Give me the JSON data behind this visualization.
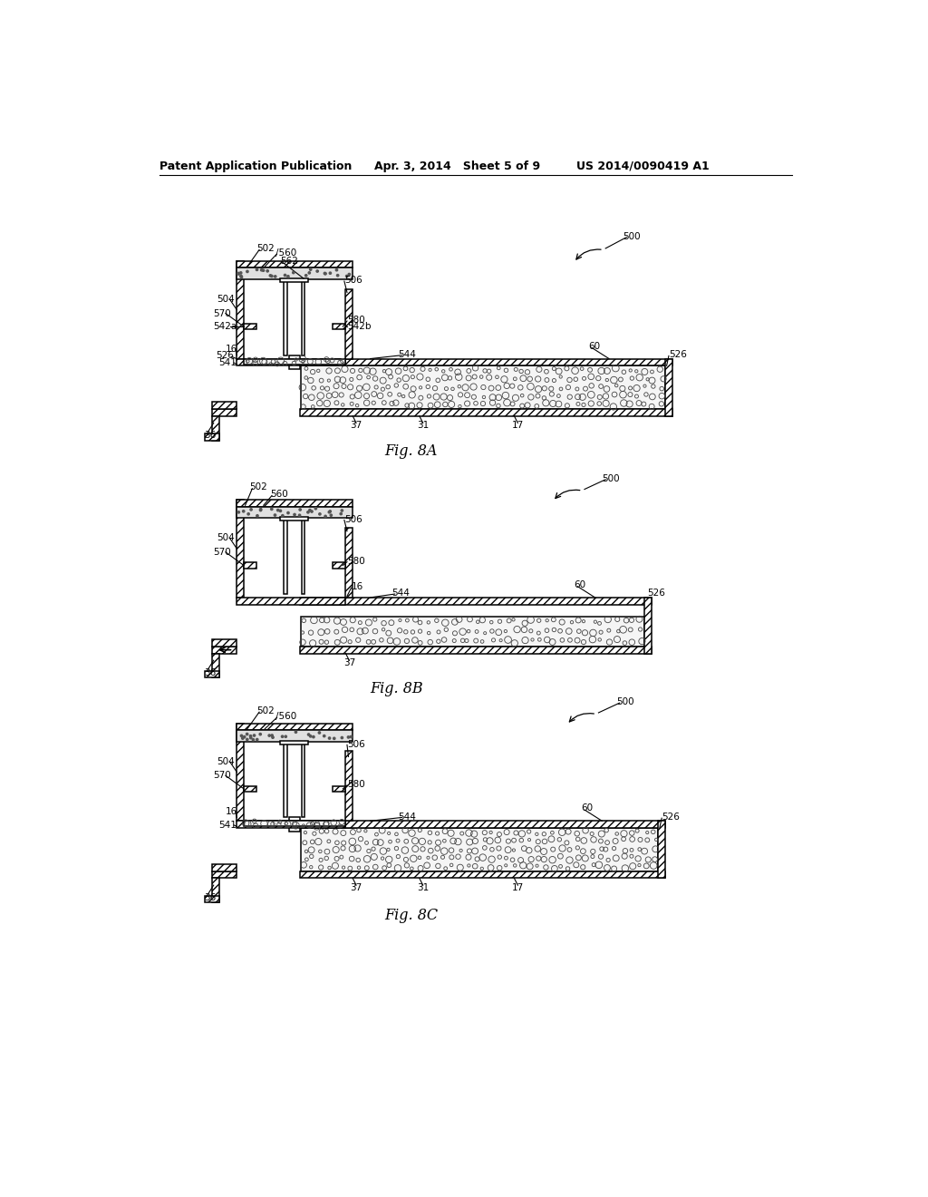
{
  "header_left": "Patent Application Publication",
  "header_mid": "Apr. 3, 2014   Sheet 5 of 9",
  "header_right": "US 2014/0090419 A1",
  "fig8A_label": "Fig. 8A",
  "fig8B_label": "Fig. 8B",
  "fig8C_label": "Fig. 8C",
  "bg_color": "#ffffff"
}
